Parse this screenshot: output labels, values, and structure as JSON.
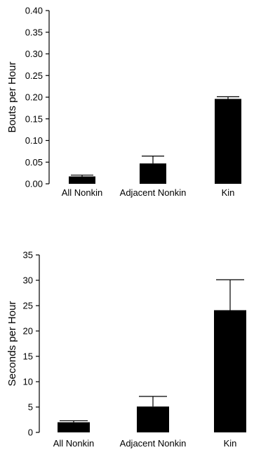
{
  "chart_data": [
    {
      "type": "bar",
      "categories": [
        "All Nonkin",
        "Adjacent Nonkin",
        "Kin"
      ],
      "values": [
        0.017,
        0.047,
        0.196
      ],
      "errors": [
        0.003,
        0.017,
        0.005
      ],
      "ylabel": "Bouts per Hour",
      "ylim": [
        0,
        0.4
      ],
      "yticks": [
        "0.00",
        "0.05",
        "0.10",
        "0.15",
        "0.20",
        "0.25",
        "0.30",
        "0.35",
        "0.40"
      ],
      "bar_color": "#000000",
      "grid": false
    },
    {
      "type": "bar",
      "categories": [
        "All Nonkin",
        "Adjacent Nonkin",
        "Kin"
      ],
      "values": [
        2.0,
        5.1,
        24.1
      ],
      "errors": [
        0.3,
        2.0,
        6.0
      ],
      "ylabel": "Seconds per Hour",
      "ylim": [
        0,
        35
      ],
      "yticks": [
        "0",
        "5",
        "10",
        "15",
        "20",
        "25",
        "30",
        "35"
      ],
      "bar_color": "#000000",
      "grid": false
    }
  ]
}
